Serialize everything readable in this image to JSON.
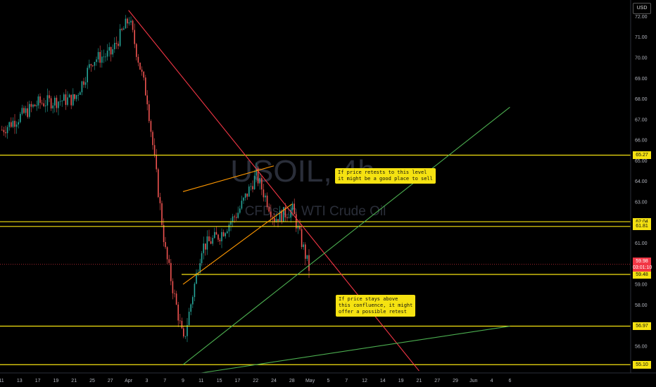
{
  "currency": "USD",
  "colors": {
    "up": "#26a69a",
    "down": "#ef5350",
    "level": "#f5e211",
    "trend_up": "#4caf50",
    "trend_down": "#f23645",
    "channel": "#ff9800",
    "axis_text": "#b2b5be",
    "watermark": "#2a2e39",
    "current_price_bg": "#f23645"
  },
  "watermark": {
    "symbol": "USOIL",
    "timeframe": "4h",
    "description": "CFDs on WTI Crude Oil"
  },
  "annotations": [
    {
      "text": "If price retests to this level\nit might be a good place to sell"
    },
    {
      "text": "If price stays above\nthis confluence, it might\noffer a possible retest"
    }
  ],
  "current_price": {
    "price": "59.98",
    "countdown": "03:01:10"
  },
  "level_labels": [
    "65.27",
    "62.04",
    "61.81",
    "59.48",
    "56.97",
    "55.10"
  ],
  "chart_data": {
    "type": "candlestick",
    "symbol": "USOIL",
    "timeframe": "4h",
    "currency": "USD",
    "ylim": [
      54.7,
      72.8
    ],
    "y_ticks": [
      "56.00",
      "57.00",
      "58.00",
      "59.00",
      "60.00",
      "61.00",
      "62.00",
      "63.00",
      "64.00",
      "65.00",
      "66.00",
      "67.00",
      "68.00",
      "69.00",
      "70.00",
      "71.00",
      "72.00"
    ],
    "x_ticks": [
      "11",
      "13",
      "17",
      "19",
      "21",
      "25",
      "27",
      "Apr",
      "3",
      "7",
      "9",
      "11",
      "15",
      "17",
      "22",
      "24",
      "28",
      "May",
      "5",
      "7",
      "12",
      "14",
      "19",
      "21",
      "27",
      "29",
      "Jun",
      "4",
      "6"
    ],
    "horizontal_levels": [
      65.27,
      62.04,
      61.81,
      59.48,
      56.97,
      55.1
    ],
    "price_path": [
      {
        "label": "11",
        "price": 66.5
      },
      {
        "label": "17",
        "price": 67.8
      },
      {
        "label": "21",
        "price": 68.0
      },
      {
        "label": "25",
        "price": 69.9
      },
      {
        "label": "27",
        "price": 70.2
      },
      {
        "label": "Apr",
        "price": 71.9
      },
      {
        "label": "3",
        "price": 68.0
      },
      {
        "label": "7",
        "price": 60.6
      },
      {
        "label": "9",
        "price": 56.2
      },
      {
        "label": "11",
        "price": 60.8
      },
      {
        "label": "15",
        "price": 61.4
      },
      {
        "label": "17",
        "price": 62.5
      },
      {
        "label": "22",
        "price": 64.3
      },
      {
        "label": "24",
        "price": 62.2
      },
      {
        "label": "28",
        "price": 62.6
      },
      {
        "label": "May",
        "price": 59.5
      }
    ],
    "trendlines": [
      {
        "color": "red",
        "from": {
          "label": "Apr",
          "price": 72.3
        },
        "to": {
          "label": "21",
          "price": 54.8
        }
      },
      {
        "color": "green",
        "from": {
          "label": "9",
          "price": 55.1
        },
        "to": {
          "label": "6",
          "price": 67.6
        }
      },
      {
        "color": "green",
        "from": {
          "label": "11",
          "price": 54.7
        },
        "to": {
          "label": "6",
          "price": 56.97
        }
      },
      {
        "color": "orange",
        "from": {
          "label": "9",
          "price": 63.5
        },
        "to": {
          "label": "24",
          "price": 64.75
        }
      },
      {
        "color": "orange",
        "from": {
          "label": "9",
          "price": 59.0
        },
        "to": {
          "label": "28",
          "price": 62.9
        }
      }
    ],
    "current_price": 59.98,
    "countdown": "03:01:10"
  }
}
